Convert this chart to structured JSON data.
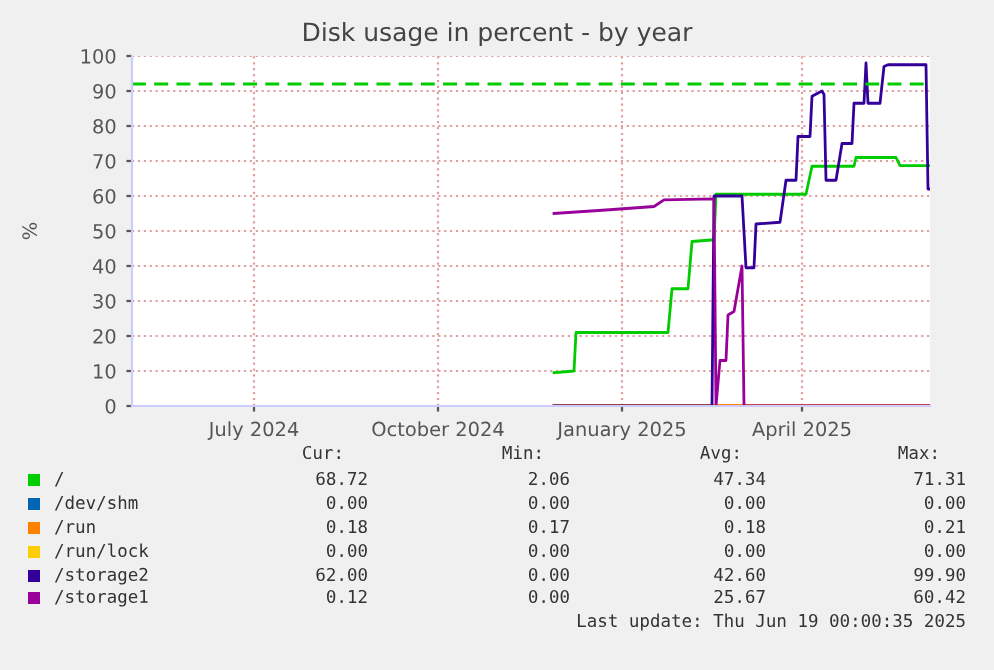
{
  "chart_data": {
    "type": "line",
    "title": "Disk usage in percent - by year",
    "ylabel": "%",
    "xlim": [
      "2024-05-16",
      "2025-06-19"
    ],
    "xticks": [
      {
        "value": "2024-07-16",
        "label": "July 2024"
      },
      {
        "value": "2024-10-16",
        "label": "October 2024"
      },
      {
        "value": "2025-01-16",
        "label": "January 2025"
      },
      {
        "value": "2025-04-16",
        "label": "April 2025"
      }
    ],
    "ylim": [
      0,
      100
    ],
    "yticks": [
      0,
      10,
      20,
      30,
      40,
      50,
      60,
      70,
      80,
      90,
      100
    ],
    "grid": true,
    "legend": "bottom",
    "line_style": "solid",
    "marker": "none",
    "ref_lines": [
      {
        "axis": "y",
        "value": 92,
        "label": null,
        "color": "#00cc00",
        "line_style": "dashed"
      }
    ],
    "series": [
      {
        "name": "/",
        "color": "#00cc00",
        "x": [
          "2024-12-13",
          "2024-12-23",
          "2024-12-24",
          "2025-02-08",
          "2025-02-10",
          "2025-02-18",
          "2025-02-20",
          "2025-03-03",
          "2025-03-04",
          "2025-04-18",
          "2025-04-21",
          "2025-05-12",
          "2025-05-13",
          "2025-06-02",
          "2025-06-04",
          "2025-06-19"
        ],
        "values": [
          9.5,
          10,
          21,
          21,
          33.5,
          33.5,
          47,
          47.5,
          60.5,
          60.5,
          68.5,
          68.5,
          71,
          71,
          68.7,
          68.7
        ]
      },
      {
        "name": "/dev/shm",
        "color": "#0066b3"
      },
      {
        "name": "/run",
        "color": "#ff8000",
        "x": [
          "2024-12-13",
          "2025-06-19"
        ],
        "values": [
          0.2,
          0.2
        ]
      },
      {
        "name": "/run/lock",
        "color": "#ffcc00"
      },
      {
        "name": "/storage2",
        "color": "#330099",
        "x": [
          "2024-12-13",
          "2025-03-02",
          "2025-03-03",
          "2025-03-17",
          "2025-03-19",
          "2025-03-23",
          "2025-03-24",
          "2025-04-05",
          "2025-04-08",
          "2025-04-13",
          "2025-04-14",
          "2025-04-20",
          "2025-04-21",
          "2025-04-26",
          "2025-04-27",
          "2025-04-28",
          "2025-05-03",
          "2025-05-06",
          "2025-05-11",
          "2025-05-12",
          "2025-05-17",
          "2025-05-18",
          "2025-05-19",
          "2025-05-25",
          "2025-05-27",
          "2025-05-29",
          "2025-06-17",
          "2025-06-18",
          "2025-06-19"
        ],
        "values": [
          0,
          0,
          60,
          60,
          39.5,
          39.5,
          52,
          52.5,
          64.5,
          64.5,
          77,
          77,
          88.5,
          90,
          89,
          64.5,
          64.5,
          75,
          75,
          86.5,
          86.5,
          98,
          86.5,
          86.5,
          97,
          97.5,
          97.5,
          62,
          62
        ]
      },
      {
        "name": "/storage1",
        "color": "#990099",
        "x": [
          "2024-12-13",
          "2025-01-08",
          "2025-02-01",
          "2025-02-06",
          "2025-03-03",
          "2025-03-04",
          "2025-03-06",
          "2025-03-09",
          "2025-03-10",
          "2025-03-13",
          "2025-03-17",
          "2025-03-18",
          "2025-06-19"
        ],
        "values": [
          55,
          56,
          57,
          58.9,
          59.2,
          0,
          13,
          13,
          26,
          27,
          40,
          0,
          0
        ]
      }
    ],
    "annotations": [
      "Cur:",
      "Min:",
      "Avg:",
      "Max:",
      "68.72",
      "2.06",
      "47.34",
      "71.31",
      "0.00",
      "0.00",
      "0.00",
      "0.00",
      "0.18",
      "0.17",
      "0.18",
      "0.21",
      "0.00",
      "0.00",
      "0.00",
      "0.00",
      "62.00",
      "0.00",
      "42.60",
      "99.90",
      "0.12",
      "0.00",
      "25.67",
      "60.42",
      "Last update: Thu Jun 19 00:00:35 2025"
    ]
  }
}
